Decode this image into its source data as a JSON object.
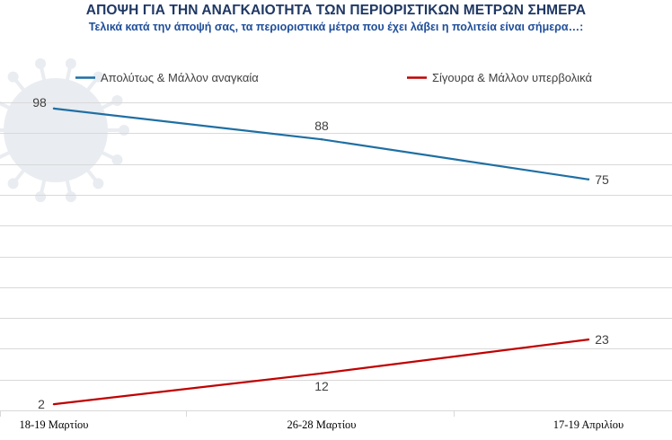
{
  "chart_data": {
    "type": "line",
    "title": "ΑΠΟΨΗ ΓΙΑ ΤΗΝ ΑΝΑΓΚΑΙΟΤΗΤΑ ΤΩΝ ΠΕΡΙΟΡΙΣΤΙΚΩΝ ΜΕΤΡΩΝ ΣΗΜΕΡΑ",
    "subtitle": "Τελικά κατά την άποψή σας, τα περιοριστικά μέτρα που έχει λάβει η πολιτεία είναι σήμερα…:",
    "categories": [
      "18-19 Μαρτίου",
      "26-28 Μαρτίου",
      "17-19 Απριλίου"
    ],
    "series": [
      {
        "name": "Απολύτως & Μάλλον αναγκαία",
        "values": [
          98,
          88,
          75
        ],
        "color": "#1f6fa3"
      },
      {
        "name": "Σίγουρα & Μάλλον υπερβολικά",
        "values": [
          2,
          12,
          23
        ],
        "color": "#c00000"
      }
    ],
    "ylim": [
      0,
      100
    ],
    "grid": true,
    "legend_position": "top",
    "gridline_color": "#d9d9d9"
  }
}
